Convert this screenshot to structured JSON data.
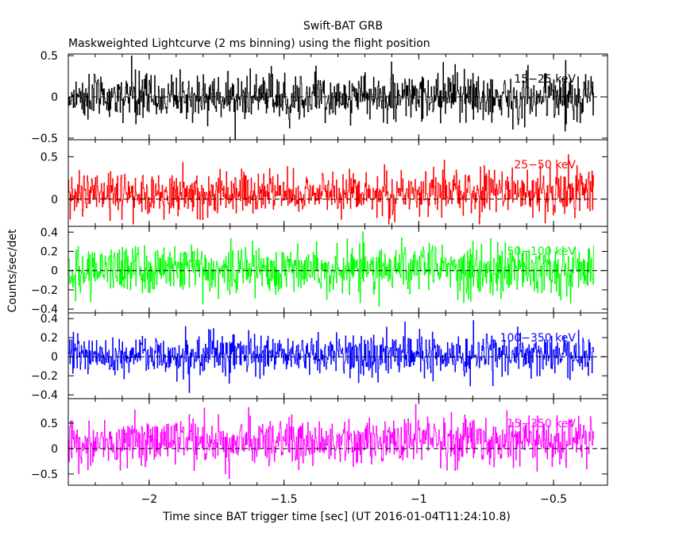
{
  "title": "Swift-BAT GRB",
  "subtitle": "Maskweighted Lightcurve (2 ms binning) using the flight position",
  "chart_data": {
    "type": "line",
    "title": "Swift-BAT GRB",
    "subtitle": "Maskweighted Lightcurve (2 ms binning) using the flight position",
    "xlabel": "Time since BAT trigger time [sec] (UT 2016-01-04T11:24:10.8)",
    "ylabel": "Counts/sec/det",
    "xlim": [
      -2.3,
      -0.3
    ],
    "data_x_range": [
      -2.31,
      -0.35
    ],
    "bin_width_sec": 0.002,
    "x_ticks": [
      -2,
      -1.5,
      -1,
      -0.5
    ],
    "x_tick_labels": [
      "−2",
      "−1.5",
      "−1",
      "−0.5"
    ],
    "panels": [
      {
        "name": "15-25 keV",
        "label": "15−25 keV",
        "color": "#000000",
        "ylim": [
          -0.52,
          0.52
        ],
        "yticks": [
          -0.5,
          0,
          0.5
        ],
        "ytick_labels": [
          "−0.5",
          "0",
          "0.5"
        ],
        "mean": 0.0,
        "noise_sigma": 0.14,
        "trend": [
          0,
          0
        ]
      },
      {
        "name": "25-50 keV",
        "label": "25−50 keV",
        "color": "#ff0000",
        "ylim": [
          -0.32,
          0.7
        ],
        "yticks": [
          0,
          0.5
        ],
        "ytick_labels": [
          "0",
          "0.5"
        ],
        "mean": 0.06,
        "noise_sigma": 0.13,
        "trend": [
          0,
          0.03
        ]
      },
      {
        "name": "50-100 keV",
        "label": "50−100 keV",
        "color": "#00ff00",
        "ylim": [
          -0.44,
          0.46
        ],
        "yticks": [
          -0.4,
          -0.2,
          0,
          0.2,
          0.4
        ],
        "ytick_labels": [
          "−0.4",
          "−0.2",
          "0",
          "0.2",
          "0.4"
        ],
        "mean": 0.02,
        "noise_sigma": 0.13,
        "trend": [
          0,
          0
        ]
      },
      {
        "name": "100-350 keV",
        "label": "100−350 keV",
        "color": "#0000ff",
        "ylim": [
          -0.44,
          0.46
        ],
        "yticks": [
          -0.4,
          -0.2,
          0,
          0.2,
          0.4
        ],
        "ytick_labels": [
          "−0.4",
          "−0.2",
          "0",
          "0.2",
          "0.4"
        ],
        "mean": 0.02,
        "noise_sigma": 0.11,
        "trend": [
          0,
          0
        ]
      },
      {
        "name": "15-350 keV",
        "label": "15−350 keV",
        "color": "#ff00ff",
        "ylim": [
          -0.72,
          0.98
        ],
        "yticks": [
          -0.5,
          0,
          0.5
        ],
        "ytick_labels": [
          "−0.5",
          "0",
          "0.5"
        ],
        "mean": 0.1,
        "noise_sigma": 0.23,
        "trend": [
          0,
          0.08
        ]
      }
    ]
  }
}
